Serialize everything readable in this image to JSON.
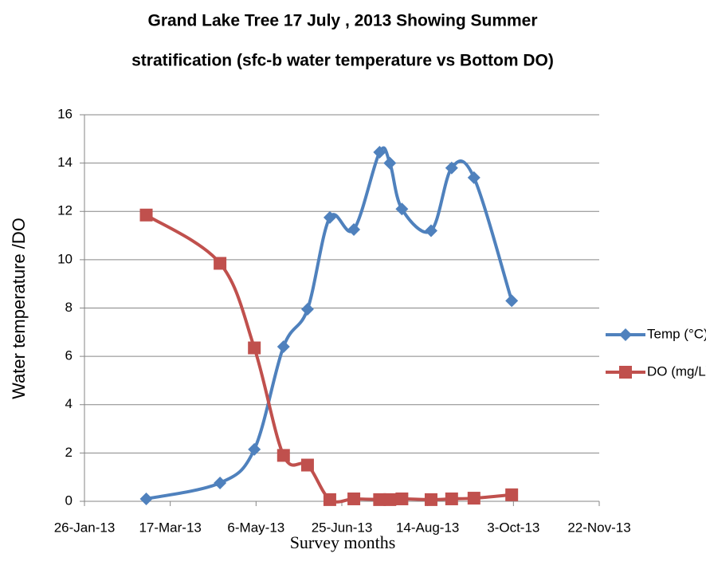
{
  "chart_data": {
    "type": "line",
    "title": "Grand Lake Tree 17 July , 2013 Showing Summer stratification (sfc-b water temperature vs Bottom DO)",
    "title_lines": [
      "Grand Lake Tree 17 July , 2013 Showing Summer",
      "stratification (sfc-b water temperature vs Bottom DO)"
    ],
    "x_label": "Survey months",
    "y_label": "Water temperature /DO",
    "x": [
      "2013-03-03",
      "2013-04-15",
      "2013-05-05",
      "2013-05-22",
      "2013-06-05",
      "2013-06-18",
      "2013-07-02",
      "2013-07-17",
      "2013-07-23",
      "2013-07-30",
      "2013-08-16",
      "2013-08-28",
      "2013-09-10",
      "2013-10-02"
    ],
    "series": [
      {
        "name": "Temp (°C)",
        "color": "#4f81bd",
        "marker": "diamond",
        "values": [
          0.1,
          0.76,
          2.15,
          6.4,
          7.95,
          11.75,
          11.25,
          14.45,
          14.0,
          12.1,
          11.2,
          13.8,
          13.4,
          8.3
        ]
      },
      {
        "name": "DO (mg/L)",
        "color": "#c0504d",
        "marker": "square",
        "values": [
          11.85,
          9.85,
          6.35,
          1.9,
          1.5,
          0.07,
          0.1,
          0.07,
          0.07,
          0.1,
          0.07,
          0.1,
          0.13,
          0.27
        ]
      }
    ],
    "xlim": [
      "2013-01-26",
      "2013-11-22"
    ],
    "xticks": [
      {
        "value": "2013-01-26",
        "label": "26-Jan-13"
      },
      {
        "value": "2013-03-17",
        "label": "17-Mar-13"
      },
      {
        "value": "2013-05-06",
        "label": "6-May-13"
      },
      {
        "value": "2013-06-25",
        "label": "25-Jun-13"
      },
      {
        "value": "2013-08-14",
        "label": "14-Aug-13"
      },
      {
        "value": "2013-10-03",
        "label": "3-Oct-13"
      },
      {
        "value": "2013-11-22",
        "label": "22-Nov-13"
      }
    ],
    "ylim": [
      0,
      16
    ],
    "yticks": [
      0,
      2,
      4,
      6,
      8,
      10,
      12,
      14,
      16
    ],
    "grid": true,
    "legend": "right",
    "smooth": true
  }
}
